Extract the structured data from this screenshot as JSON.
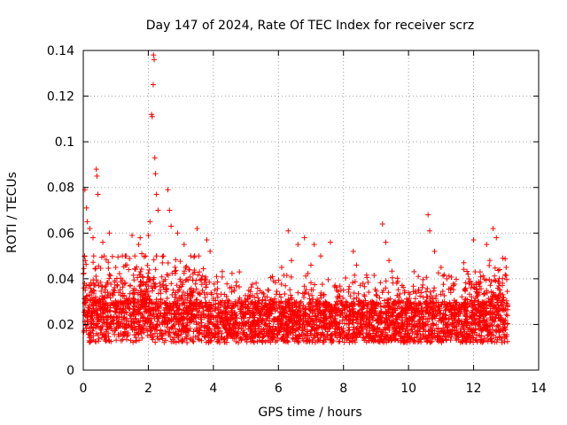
{
  "chart_data": {
    "type": "scatter",
    "title": "Day 147 of 2024, Rate Of TEC Index for receiver scrz",
    "xlabel": "GPS time / hours",
    "ylabel": "ROTI / TECUs",
    "xlim": [
      0,
      14
    ],
    "ylim": [
      0,
      0.14
    ],
    "x_ticks": [
      0,
      2,
      4,
      6,
      8,
      10,
      12,
      14
    ],
    "x_tick_labels": [
      "0",
      "2",
      "4",
      "6",
      "8",
      "10",
      "12",
      "14"
    ],
    "y_ticks": [
      0,
      0.02,
      0.04,
      0.06,
      0.08,
      0.1,
      0.12,
      0.14
    ],
    "y_tick_labels": [
      "0",
      "0.02",
      "0.04",
      "0.06",
      "0.08",
      "0.1",
      "0.12",
      "0.14"
    ],
    "grid": true,
    "marker": "+",
    "series_color": "#ff0000",
    "series": [
      {
        "name": "ROTI",
        "points": [
          [
            0.05,
            0.079
          ],
          [
            0.1,
            0.071
          ],
          [
            0.12,
            0.065
          ],
          [
            0.2,
            0.062
          ],
          [
            0.3,
            0.058
          ],
          [
            0.4,
            0.088
          ],
          [
            0.42,
            0.085
          ],
          [
            0.45,
            0.077
          ],
          [
            0.6,
            0.056
          ],
          [
            0.8,
            0.06
          ],
          [
            1.0,
            0.045
          ],
          [
            1.2,
            0.05
          ],
          [
            1.5,
            0.059
          ],
          [
            1.7,
            0.055
          ],
          [
            1.75,
            0.058
          ],
          [
            1.8,
            0.051
          ],
          [
            2.0,
            0.059
          ],
          [
            2.05,
            0.065
          ],
          [
            2.1,
            0.112
          ],
          [
            2.12,
            0.111
          ],
          [
            2.15,
            0.125
          ],
          [
            2.16,
            0.138
          ],
          [
            2.18,
            0.136
          ],
          [
            2.2,
            0.093
          ],
          [
            2.22,
            0.086
          ],
          [
            2.25,
            0.077
          ],
          [
            2.3,
            0.07
          ],
          [
            2.6,
            0.079
          ],
          [
            2.65,
            0.07
          ],
          [
            2.7,
            0.063
          ],
          [
            2.9,
            0.06
          ],
          [
            3.1,
            0.055
          ],
          [
            3.5,
            0.062
          ],
          [
            3.8,
            0.057
          ],
          [
            3.9,
            0.052
          ],
          [
            4.1,
            0.041
          ],
          [
            4.5,
            0.036
          ],
          [
            4.8,
            0.043
          ],
          [
            5.0,
            0.03
          ],
          [
            5.3,
            0.028
          ],
          [
            5.7,
            0.035
          ],
          [
            6.1,
            0.045
          ],
          [
            6.3,
            0.061
          ],
          [
            6.4,
            0.048
          ],
          [
            6.6,
            0.055
          ],
          [
            6.8,
            0.058
          ],
          [
            7.0,
            0.046
          ],
          [
            7.1,
            0.055
          ],
          [
            7.3,
            0.05
          ],
          [
            7.6,
            0.056
          ],
          [
            8.0,
            0.035
          ],
          [
            8.3,
            0.052
          ],
          [
            8.4,
            0.046
          ],
          [
            8.6,
            0.038
          ],
          [
            9.0,
            0.033
          ],
          [
            9.2,
            0.064
          ],
          [
            9.3,
            0.056
          ],
          [
            9.4,
            0.048
          ],
          [
            9.7,
            0.03
          ],
          [
            10.0,
            0.034
          ],
          [
            10.3,
            0.041
          ],
          [
            10.6,
            0.068
          ],
          [
            10.65,
            0.061
          ],
          [
            10.8,
            0.052
          ],
          [
            11.0,
            0.045
          ],
          [
            11.3,
            0.034
          ],
          [
            11.7,
            0.047
          ],
          [
            12.0,
            0.057
          ],
          [
            12.2,
            0.043
          ],
          [
            12.4,
            0.055
          ],
          [
            12.5,
            0.048
          ],
          [
            12.6,
            0.062
          ],
          [
            12.7,
            0.058
          ],
          [
            12.8,
            0.044
          ],
          [
            12.9,
            0.049
          ],
          [
            13.0,
            0.045
          ]
        ]
      }
    ]
  }
}
